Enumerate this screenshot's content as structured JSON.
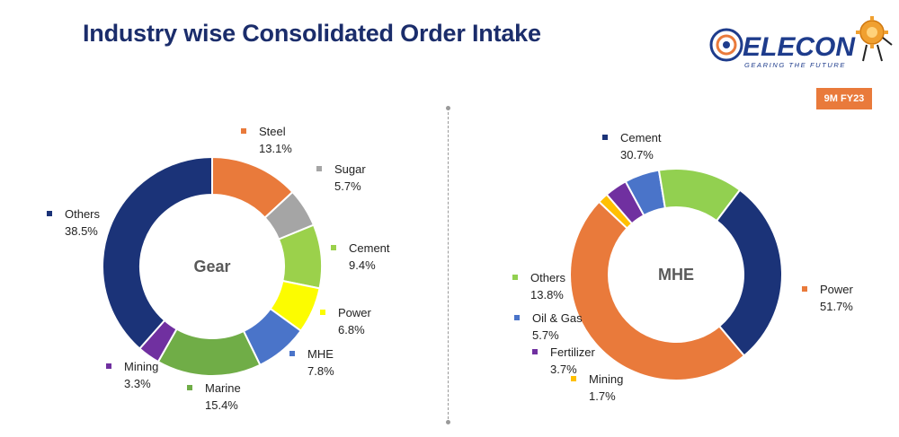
{
  "header": {
    "title": "Industry wise Consolidated Order Intake",
    "badge": "9M FY23",
    "logo": {
      "text": "ELECON",
      "tagline": "GEARING THE FUTURE"
    }
  },
  "colors": {
    "navy": "#1b3378",
    "orange": "#e97a3b",
    "gray": "#a5a5a5",
    "green": "#9bd14b",
    "yellow": "#fcfc00",
    "blue": "#4a74c9",
    "olive": "#70ad47",
    "purple": "#7030a0",
    "mining_gold": "#ffc000",
    "light_green": "#92d050"
  },
  "chart_data": [
    {
      "type": "pie",
      "donut": true,
      "center_label": "Gear",
      "series": [
        {
          "name": "Steel",
          "value": 13.1,
          "label": "13.1%",
          "color": "#e97a3b"
        },
        {
          "name": "Sugar",
          "value": 5.7,
          "label": "5.7%",
          "color": "#a5a5a5"
        },
        {
          "name": "Cement",
          "value": 9.4,
          "label": "9.4%",
          "color": "#9bd14b"
        },
        {
          "name": "Power",
          "value": 6.8,
          "label": "6.8%",
          "color": "#fcfc00"
        },
        {
          "name": "MHE",
          "value": 7.8,
          "label": "7.8%",
          "color": "#4a74c9"
        },
        {
          "name": "Marine",
          "value": 15.4,
          "label": "15.4%",
          "color": "#70ad47"
        },
        {
          "name": "Mining",
          "value": 3.3,
          "label": "3.3%",
          "color": "#7030a0"
        },
        {
          "name": "Others",
          "value": 38.5,
          "label": "38.5%",
          "color": "#1b3378"
        }
      ]
    },
    {
      "type": "pie",
      "donut": true,
      "center_label": "MHE",
      "series": [
        {
          "name": "Power",
          "value": 51.7,
          "label": "51.7%",
          "color": "#e97a3b"
        },
        {
          "name": "Mining",
          "value": 1.7,
          "label": "1.7%",
          "color": "#ffc000"
        },
        {
          "name": "Fertilizer",
          "value": 3.7,
          "label": "3.7%",
          "color": "#7030a0"
        },
        {
          "name": "Oil & Gas",
          "value": 5.7,
          "label": "5.7%",
          "color": "#4a74c9"
        },
        {
          "name": "Others",
          "value": 13.8,
          "label": "13.8%",
          "color": "#92d050"
        },
        {
          "name": "Cement",
          "value": 30.7,
          "label": "30.7%",
          "color": "#1b3378"
        }
      ]
    }
  ]
}
